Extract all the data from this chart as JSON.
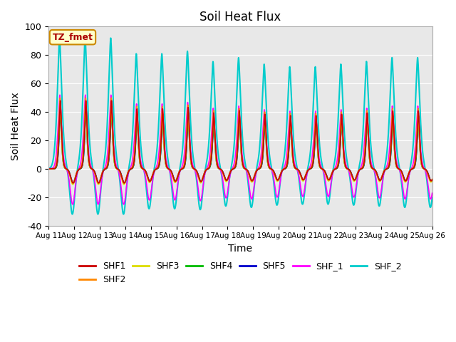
{
  "title": "Soil Heat Flux",
  "xlabel": "Time",
  "ylabel": "Soil Heat Flux",
  "ylim": [
    -40,
    100
  ],
  "yticks": [
    -40,
    -20,
    0,
    20,
    40,
    60,
    80,
    100
  ],
  "xtick_labels": [
    "Aug 11",
    "Aug 12",
    "Aug 13",
    "Aug 14",
    "Aug 15",
    "Aug 16",
    "Aug 17",
    "Aug 18",
    "Aug 19",
    "Aug 20",
    "Aug 21",
    "Aug 22",
    "Aug 23",
    "Aug 24",
    "Aug 25",
    "Aug 26"
  ],
  "series": {
    "SHF1": {
      "color": "#cc0000",
      "lw": 1.2
    },
    "SHF2": {
      "color": "#ff8800",
      "lw": 1.2
    },
    "SHF3": {
      "color": "#dddd00",
      "lw": 1.2
    },
    "SHF4": {
      "color": "#00bb00",
      "lw": 1.2
    },
    "SHF5": {
      "color": "#0000cc",
      "lw": 1.5
    },
    "SHF_1": {
      "color": "#ff00ff",
      "lw": 1.2
    },
    "SHF_2": {
      "color": "#00cccc",
      "lw": 1.5
    }
  },
  "annotation_text": "TZ_fmet",
  "annotation_color": "#aa0000",
  "annotation_bg": "#ffffcc",
  "annotation_border": "#cc8800",
  "bg_color": "#e8e8e8",
  "grid_color": "#ffffff",
  "n_days": 15,
  "pts_per_day": 288
}
